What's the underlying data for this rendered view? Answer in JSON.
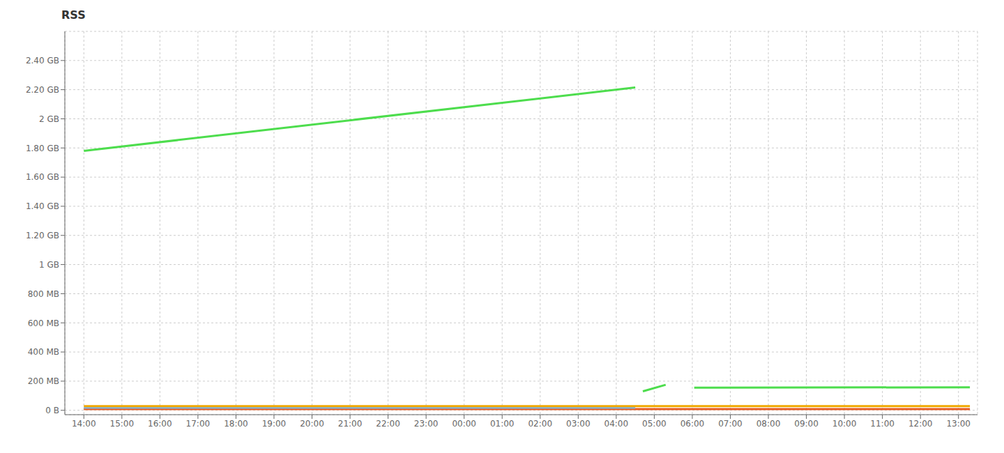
{
  "chart_data": {
    "type": "line",
    "title": "RSS",
    "grid": true,
    "xlim": [
      -0.5,
      23.5
    ],
    "xticks": [
      {
        "value": 0,
        "label": "14:00"
      },
      {
        "value": 1,
        "label": "15:00"
      },
      {
        "value": 2,
        "label": "16:00"
      },
      {
        "value": 3,
        "label": "17:00"
      },
      {
        "value": 4,
        "label": "18:00"
      },
      {
        "value": 5,
        "label": "19:00"
      },
      {
        "value": 6,
        "label": "20:00"
      },
      {
        "value": 7,
        "label": "21:00"
      },
      {
        "value": 8,
        "label": "22:00"
      },
      {
        "value": 9,
        "label": "23:00"
      },
      {
        "value": 10,
        "label": "00:00"
      },
      {
        "value": 11,
        "label": "01:00"
      },
      {
        "value": 12,
        "label": "02:00"
      },
      {
        "value": 13,
        "label": "03:00"
      },
      {
        "value": 14,
        "label": "04:00"
      },
      {
        "value": 15,
        "label": "05:00"
      },
      {
        "value": 16,
        "label": "06:00"
      },
      {
        "value": 17,
        "label": "07:00"
      },
      {
        "value": 18,
        "label": "08:00"
      },
      {
        "value": 19,
        "label": "09:00"
      },
      {
        "value": 20,
        "label": "10:00"
      },
      {
        "value": 21,
        "label": "11:00"
      },
      {
        "value": 22,
        "label": "12:00"
      },
      {
        "value": 23,
        "label": "13:00"
      }
    ],
    "ylim": [
      -30,
      2600
    ],
    "yticks": [
      {
        "value": 0,
        "label": "0 B"
      },
      {
        "value": 200,
        "label": "200 MB"
      },
      {
        "value": 400,
        "label": "400 MB"
      },
      {
        "value": 600,
        "label": "600 MB"
      },
      {
        "value": 800,
        "label": "800 MB"
      },
      {
        "value": 1000,
        "label": "1 GB"
      },
      {
        "value": 1200,
        "label": "1.20 GB"
      },
      {
        "value": 1400,
        "label": "1.40 GB"
      },
      {
        "value": 1600,
        "label": "1.60 GB"
      },
      {
        "value": 1800,
        "label": "1.80 GB"
      },
      {
        "value": 2000,
        "label": "2 GB"
      },
      {
        "value": 2200,
        "label": "2.20 GB"
      },
      {
        "value": 2400,
        "label": "2.40 GB"
      }
    ],
    "series": [
      {
        "color": "#e85d20",
        "x": [
          0,
          23.3
        ],
        "values": [
          8,
          8
        ]
      },
      {
        "color": "#7eb4e0",
        "x": [
          0,
          14.5
        ],
        "values": [
          18,
          18
        ]
      },
      {
        "color": "#f0a800",
        "x": [
          0,
          23.3
        ],
        "values": [
          28,
          28
        ]
      },
      {
        "color": "#4ddd4d",
        "x": [
          0.0,
          14.5
        ],
        "values": [
          1780,
          2215
        ]
      },
      {
        "color": "#4ddd4d",
        "x": [
          14.7,
          15.3
        ],
        "values": [
          130,
          175
        ]
      },
      {
        "color": "#4ddd4d",
        "x": [
          16.05,
          23.3
        ],
        "values": [
          155,
          158
        ]
      }
    ]
  }
}
